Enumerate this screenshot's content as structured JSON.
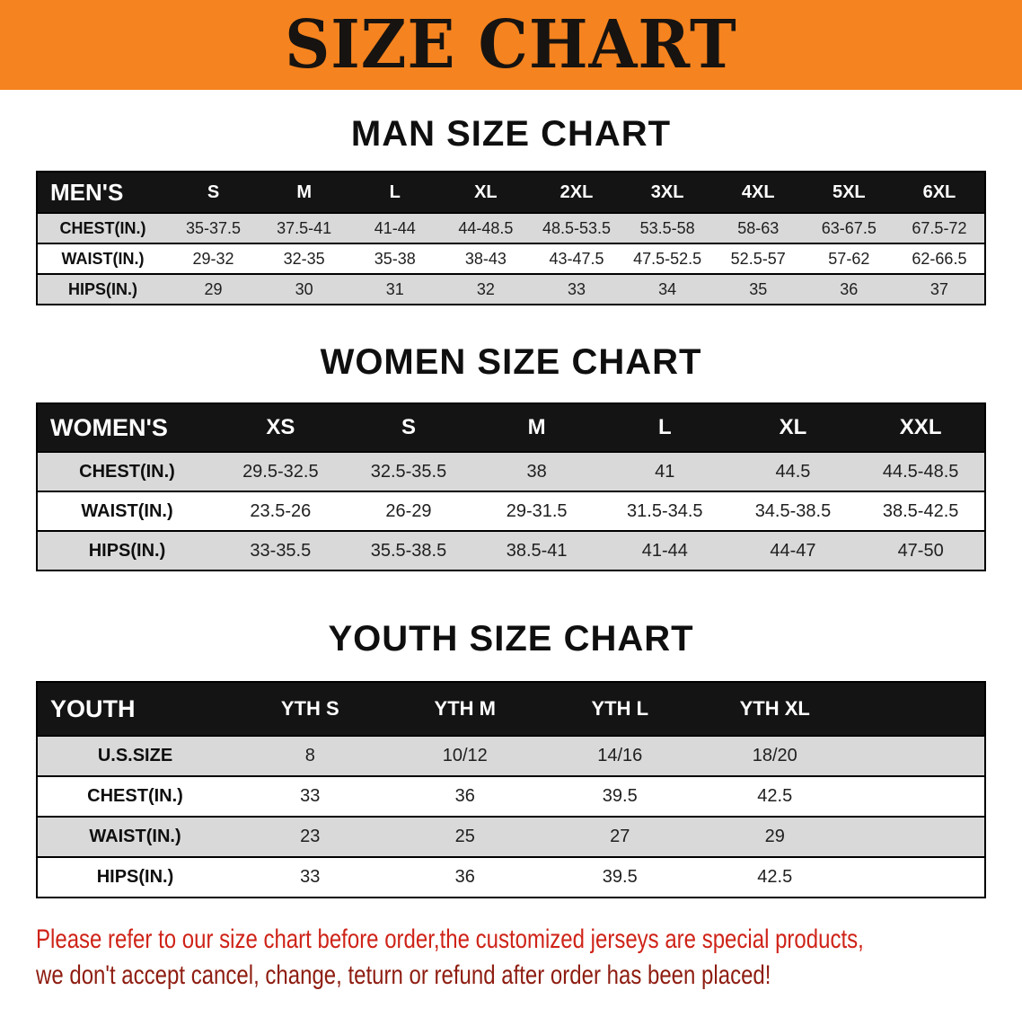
{
  "banner": {
    "title": "SIZE CHART"
  },
  "sections": [
    {
      "id": "men",
      "heading": "MAN SIZE CHART",
      "table": {
        "corner_label": "MEN'S",
        "columns": [
          "S",
          "M",
          "L",
          "XL",
          "2XL",
          "3XL",
          "4XL",
          "5XL",
          "6XL"
        ],
        "rows": [
          {
            "label": "CHEST(IN.)",
            "values": [
              "35-37.5",
              "37.5-41",
              "41-44",
              "44-48.5",
              "48.5-53.5",
              "53.5-58",
              "58-63",
              "63-67.5",
              "67.5-72"
            ]
          },
          {
            "label": "WAIST(IN.)",
            "values": [
              "29-32",
              "32-35",
              "35-38",
              "38-43",
              "43-47.5",
              "47.5-52.5",
              "52.5-57",
              "57-62",
              "62-66.5"
            ]
          },
          {
            "label": "HIPS(IN.)",
            "values": [
              "29",
              "30",
              "31",
              "32",
              "33",
              "34",
              "35",
              "36",
              "37"
            ]
          }
        ]
      }
    },
    {
      "id": "women",
      "heading": "WOMEN SIZE CHART",
      "table": {
        "corner_label": "WOMEN'S",
        "columns": [
          "XS",
          "S",
          "M",
          "L",
          "XL",
          "XXL"
        ],
        "rows": [
          {
            "label": "CHEST(IN.)",
            "values": [
              "29.5-32.5",
              "32.5-35.5",
              "38",
              "41",
              "44.5",
              "44.5-48.5"
            ]
          },
          {
            "label": "WAIST(IN.)",
            "values": [
              "23.5-26",
              "26-29",
              "29-31.5",
              "31.5-34.5",
              "34.5-38.5",
              "38.5-42.5"
            ]
          },
          {
            "label": "HIPS(IN.)",
            "values": [
              "33-35.5",
              "35.5-38.5",
              "38.5-41",
              "41-44",
              "44-47",
              "47-50"
            ]
          }
        ]
      }
    },
    {
      "id": "youth",
      "heading": "YOUTH SIZE CHART",
      "table": {
        "corner_label": "YOUTH",
        "columns": [
          "YTH S",
          "YTH M",
          "YTH L",
          "YTH XL"
        ],
        "rows": [
          {
            "label": "U.S.SIZE",
            "values": [
              "8",
              "10/12",
              "14/16",
              "18/20"
            ]
          },
          {
            "label": "CHEST(IN.)",
            "values": [
              "33",
              "36",
              "39.5",
              "42.5"
            ]
          },
          {
            "label": "WAIST(IN.)",
            "values": [
              "23",
              "25",
              "27",
              "29"
            ]
          },
          {
            "label": "HIPS(IN.)",
            "values": [
              "33",
              "36",
              "39.5",
              "42.5"
            ]
          }
        ]
      }
    }
  ],
  "footer": {
    "line1": "Please refer to our size chart before order,the customized jerseys are special products,",
    "line2": "we don't accept cancel, change, teturn or refund after order has been placed!"
  },
  "colors": {
    "banner_orange": "#f5831f",
    "table_header_black": "#141414",
    "stripe_gray": "#d9d9d9",
    "footer_red": "#cf2318",
    "footer_dark_red": "#8e1c10"
  }
}
